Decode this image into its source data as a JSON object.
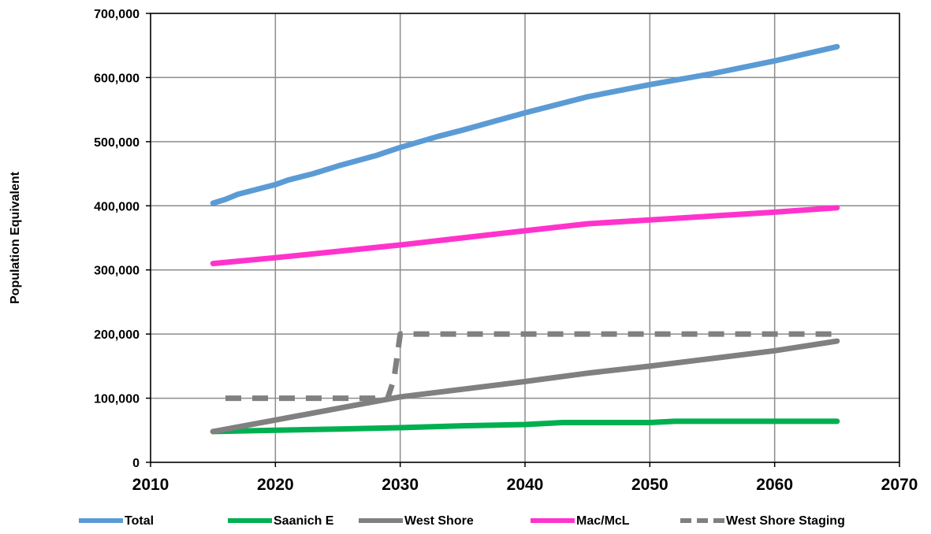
{
  "chart_data": {
    "type": "line",
    "ylabel": "Population Equivalent",
    "xlabel": "",
    "xlim": [
      2010,
      2070
    ],
    "ylim": [
      0,
      700000
    ],
    "x_ticks": [
      2010,
      2020,
      2030,
      2040,
      2050,
      2060,
      2070
    ],
    "y_ticks": [
      0,
      100000,
      200000,
      300000,
      400000,
      500000,
      600000,
      700000
    ],
    "x_tick_labels": [
      "2010",
      "2020",
      "2030",
      "2040",
      "2050",
      "2060",
      "2070"
    ],
    "y_tick_labels": [
      "0",
      "100,000",
      "200,000",
      "300,000",
      "400,000",
      "500,000",
      "600,000",
      "700,000"
    ],
    "grid": true,
    "legend_position": "bottom",
    "series": [
      {
        "name": "Total",
        "color": "#5B9BD5",
        "dashed": false,
        "points": [
          [
            2015,
            404000
          ],
          [
            2016,
            410000
          ],
          [
            2017,
            418000
          ],
          [
            2020,
            433000
          ],
          [
            2021,
            440000
          ],
          [
            2023,
            450000
          ],
          [
            2025,
            462000
          ],
          [
            2028,
            478000
          ],
          [
            2030,
            491000
          ],
          [
            2033,
            508000
          ],
          [
            2035,
            518000
          ],
          [
            2040,
            545000
          ],
          [
            2045,
            570000
          ],
          [
            2050,
            589000
          ],
          [
            2055,
            606000
          ],
          [
            2060,
            626000
          ],
          [
            2065,
            648000
          ]
        ]
      },
      {
        "name": "Saanich E",
        "color": "#00B050",
        "dashed": false,
        "points": [
          [
            2015,
            48000
          ],
          [
            2020,
            50000
          ],
          [
            2025,
            52000
          ],
          [
            2030,
            54000
          ],
          [
            2035,
            57000
          ],
          [
            2040,
            59000
          ],
          [
            2043,
            62000
          ],
          [
            2050,
            62000
          ],
          [
            2052,
            64000
          ],
          [
            2065,
            64000
          ]
        ]
      },
      {
        "name": "West Shore",
        "color": "#808080",
        "dashed": false,
        "points": [
          [
            2015,
            48000
          ],
          [
            2020,
            66000
          ],
          [
            2025,
            84000
          ],
          [
            2030,
            102000
          ],
          [
            2035,
            114000
          ],
          [
            2040,
            126000
          ],
          [
            2045,
            139000
          ],
          [
            2050,
            150000
          ],
          [
            2055,
            162000
          ],
          [
            2060,
            174000
          ],
          [
            2065,
            189000
          ]
        ]
      },
      {
        "name": "Mac/McL",
        "color": "#FF33CC",
        "dashed": false,
        "points": [
          [
            2015,
            310000
          ],
          [
            2020,
            319000
          ],
          [
            2025,
            329000
          ],
          [
            2030,
            339000
          ],
          [
            2035,
            350000
          ],
          [
            2040,
            361000
          ],
          [
            2045,
            372000
          ],
          [
            2050,
            378000
          ],
          [
            2055,
            384000
          ],
          [
            2060,
            390000
          ],
          [
            2065,
            397000
          ]
        ]
      },
      {
        "name": "West Shore Staging",
        "color": "#808080",
        "dashed": true,
        "points": [
          [
            2016,
            100000
          ],
          [
            2029,
            100000
          ],
          [
            2029.5,
            130000
          ],
          [
            2030,
            200000
          ],
          [
            2065,
            200000
          ]
        ]
      }
    ]
  }
}
